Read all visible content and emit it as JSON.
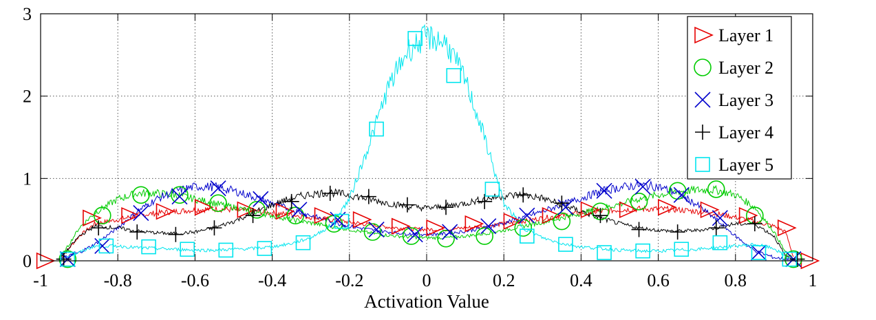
{
  "chart_data": {
    "type": "line",
    "title": "",
    "xlabel": "Activation Value",
    "ylabel": "",
    "xlim": [
      -1,
      1
    ],
    "ylim": [
      0,
      3
    ],
    "xticks": [
      -1,
      -0.8,
      -0.6,
      -0.4,
      -0.2,
      0,
      0.2,
      0.4,
      0.6,
      0.8,
      1
    ],
    "xtick_labels": [
      "-1",
      "-0.8",
      "-0.6",
      "-0.4",
      "-0.2",
      "0",
      "0.2",
      "0.4",
      "0.6",
      "0.8",
      "1"
    ],
    "yticks": [
      0,
      1,
      2,
      3
    ],
    "ytick_labels": [
      "0",
      "1",
      "2",
      "3"
    ],
    "grid": true,
    "legend_position": "top-right",
    "series": [
      {
        "name": "Layer 1",
        "color": "#e60000",
        "marker": "triangle-right",
        "x": [
          -0.95,
          -0.9,
          -0.86,
          -0.8,
          -0.75,
          -0.7,
          -0.65,
          -0.6,
          -0.55,
          -0.5,
          -0.45,
          -0.4,
          -0.35,
          -0.3,
          -0.25,
          -0.2,
          -0.15,
          -0.1,
          -0.05,
          0.0,
          0.05,
          0.1,
          0.15,
          0.2,
          0.25,
          0.3,
          0.35,
          0.4,
          0.45,
          0.5,
          0.55,
          0.6,
          0.65,
          0.7,
          0.75,
          0.8,
          0.85,
          0.9,
          0.93,
          0.95
        ],
        "y": [
          0.02,
          0.3,
          0.45,
          0.5,
          0.55,
          0.58,
          0.6,
          0.62,
          0.63,
          0.62,
          0.6,
          0.58,
          0.56,
          0.53,
          0.5,
          0.47,
          0.44,
          0.41,
          0.39,
          0.38,
          0.38,
          0.4,
          0.42,
          0.45,
          0.48,
          0.52,
          0.55,
          0.58,
          0.6,
          0.62,
          0.63,
          0.63,
          0.62,
          0.6,
          0.57,
          0.53,
          0.48,
          0.42,
          0.35,
          0.05
        ],
        "markers_x": [
          -0.99,
          -0.87,
          -0.77,
          -0.68,
          -0.58,
          -0.47,
          -0.37,
          -0.27,
          -0.17,
          -0.07,
          0.02,
          0.12,
          0.22,
          0.32,
          0.42,
          0.52,
          0.62,
          0.73,
          0.83,
          0.93,
          0.99
        ],
        "markers_y": [
          0.0,
          0.52,
          0.55,
          0.6,
          0.65,
          0.62,
          0.6,
          0.55,
          0.5,
          0.42,
          0.4,
          0.45,
          0.48,
          0.55,
          0.62,
          0.62,
          0.65,
          0.62,
          0.55,
          0.4,
          0.0
        ]
      },
      {
        "name": "Layer 2",
        "color": "#00cc00",
        "marker": "circle",
        "x": [
          -0.95,
          -0.9,
          -0.86,
          -0.8,
          -0.75,
          -0.7,
          -0.65,
          -0.6,
          -0.55,
          -0.5,
          -0.45,
          -0.4,
          -0.35,
          -0.3,
          -0.25,
          -0.2,
          -0.15,
          -0.1,
          -0.05,
          0.0,
          0.05,
          0.1,
          0.15,
          0.2,
          0.25,
          0.3,
          0.35,
          0.4,
          0.45,
          0.5,
          0.55,
          0.6,
          0.65,
          0.7,
          0.75,
          0.8,
          0.85,
          0.9,
          0.93,
          0.95
        ],
        "y": [
          0.02,
          0.4,
          0.58,
          0.75,
          0.82,
          0.82,
          0.8,
          0.75,
          0.7,
          0.65,
          0.6,
          0.55,
          0.5,
          0.46,
          0.42,
          0.38,
          0.34,
          0.31,
          0.29,
          0.28,
          0.28,
          0.3,
          0.33,
          0.37,
          0.42,
          0.47,
          0.52,
          0.58,
          0.63,
          0.69,
          0.75,
          0.8,
          0.84,
          0.86,
          0.86,
          0.8,
          0.65,
          0.35,
          0.1,
          0.02
        ],
        "markers_x": [
          -0.93,
          -0.84,
          -0.74,
          -0.64,
          -0.54,
          -0.44,
          -0.34,
          -0.24,
          -0.14,
          -0.04,
          0.05,
          0.15,
          0.25,
          0.35,
          0.45,
          0.55,
          0.65,
          0.75,
          0.85,
          0.95
        ],
        "markers_y": [
          0.02,
          0.55,
          0.8,
          0.8,
          0.7,
          0.62,
          0.55,
          0.45,
          0.35,
          0.3,
          0.27,
          0.3,
          0.4,
          0.48,
          0.6,
          0.72,
          0.85,
          0.87,
          0.55,
          0.02
        ]
      },
      {
        "name": "Layer 3",
        "color": "#0000cc",
        "marker": "x",
        "x": [
          -0.95,
          -0.9,
          -0.86,
          -0.8,
          -0.75,
          -0.7,
          -0.65,
          -0.6,
          -0.55,
          -0.5,
          -0.45,
          -0.4,
          -0.35,
          -0.3,
          -0.25,
          -0.2,
          -0.15,
          -0.1,
          -0.05,
          0.0,
          0.05,
          0.1,
          0.15,
          0.2,
          0.25,
          0.3,
          0.35,
          0.4,
          0.45,
          0.5,
          0.55,
          0.6,
          0.65,
          0.7,
          0.75,
          0.8,
          0.85,
          0.9,
          0.93,
          0.95
        ],
        "y": [
          0.02,
          0.1,
          0.2,
          0.4,
          0.6,
          0.75,
          0.85,
          0.9,
          0.9,
          0.85,
          0.78,
          0.7,
          0.62,
          0.55,
          0.48,
          0.42,
          0.38,
          0.35,
          0.33,
          0.32,
          0.33,
          0.36,
          0.4,
          0.46,
          0.53,
          0.6,
          0.68,
          0.76,
          0.84,
          0.89,
          0.92,
          0.9,
          0.82,
          0.68,
          0.5,
          0.3,
          0.12,
          0.04,
          0.02,
          0.01
        ],
        "markers_x": [
          -0.93,
          -0.84,
          -0.74,
          -0.64,
          -0.54,
          -0.43,
          -0.33,
          -0.23,
          -0.13,
          -0.03,
          0.06,
          0.16,
          0.26,
          0.36,
          0.46,
          0.56,
          0.66,
          0.76,
          0.86,
          0.95
        ],
        "markers_y": [
          0.02,
          0.18,
          0.58,
          0.78,
          0.88,
          0.75,
          0.62,
          0.5,
          0.38,
          0.32,
          0.35,
          0.42,
          0.55,
          0.65,
          0.85,
          0.9,
          0.8,
          0.52,
          0.1,
          0.02
        ]
      },
      {
        "name": "Layer 4",
        "color": "#000000",
        "marker": "plus",
        "x": [
          -0.95,
          -0.9,
          -0.86,
          -0.8,
          -0.75,
          -0.7,
          -0.65,
          -0.6,
          -0.55,
          -0.5,
          -0.45,
          -0.4,
          -0.35,
          -0.3,
          -0.25,
          -0.2,
          -0.15,
          -0.1,
          -0.05,
          0.0,
          0.05,
          0.1,
          0.15,
          0.2,
          0.25,
          0.3,
          0.35,
          0.4,
          0.45,
          0.5,
          0.55,
          0.6,
          0.65,
          0.7,
          0.75,
          0.8,
          0.85,
          0.9,
          0.93,
          0.95
        ],
        "y": [
          0.02,
          0.3,
          0.42,
          0.4,
          0.36,
          0.34,
          0.33,
          0.35,
          0.4,
          0.48,
          0.58,
          0.68,
          0.76,
          0.81,
          0.83,
          0.8,
          0.75,
          0.7,
          0.66,
          0.64,
          0.66,
          0.7,
          0.75,
          0.79,
          0.8,
          0.76,
          0.68,
          0.6,
          0.52,
          0.45,
          0.4,
          0.37,
          0.36,
          0.37,
          0.4,
          0.45,
          0.45,
          0.3,
          0.05,
          0.02
        ],
        "markers_x": [
          -0.94,
          -0.85,
          -0.75,
          -0.65,
          -0.55,
          -0.45,
          -0.35,
          -0.25,
          -0.15,
          -0.05,
          0.05,
          0.15,
          0.25,
          0.35,
          0.45,
          0.55,
          0.65,
          0.75,
          0.85,
          0.96
        ],
        "markers_y": [
          0.02,
          0.4,
          0.35,
          0.32,
          0.4,
          0.55,
          0.72,
          0.82,
          0.78,
          0.68,
          0.65,
          0.72,
          0.8,
          0.7,
          0.55,
          0.38,
          0.35,
          0.4,
          0.45,
          0.02
        ]
      },
      {
        "name": "Layer 5",
        "color": "#00e5ee",
        "marker": "square",
        "x": [
          -0.95,
          -0.9,
          -0.86,
          -0.8,
          -0.75,
          -0.7,
          -0.65,
          -0.6,
          -0.55,
          -0.5,
          -0.45,
          -0.4,
          -0.35,
          -0.3,
          -0.25,
          -0.2,
          -0.15,
          -0.1,
          -0.05,
          0.0,
          0.05,
          0.1,
          0.15,
          0.2,
          0.25,
          0.3,
          0.35,
          0.4,
          0.45,
          0.5,
          0.55,
          0.6,
          0.65,
          0.7,
          0.75,
          0.8,
          0.85,
          0.9,
          0.93,
          0.95
        ],
        "y": [
          0.02,
          0.1,
          0.18,
          0.18,
          0.16,
          0.15,
          0.14,
          0.13,
          0.13,
          0.14,
          0.15,
          0.17,
          0.21,
          0.28,
          0.42,
          0.75,
          1.4,
          2.1,
          2.55,
          2.72,
          2.65,
          2.2,
          1.5,
          0.7,
          0.4,
          0.28,
          0.21,
          0.17,
          0.15,
          0.13,
          0.12,
          0.12,
          0.13,
          0.14,
          0.16,
          0.18,
          0.2,
          0.15,
          0.05,
          0.02
        ],
        "markers_x": [
          -0.93,
          -0.83,
          -0.72,
          -0.62,
          -0.52,
          -0.42,
          -0.32,
          -0.22,
          -0.13,
          -0.03,
          0.07,
          0.17,
          0.26,
          0.36,
          0.46,
          0.56,
          0.66,
          0.76,
          0.86,
          0.94
        ],
        "markers_y": [
          0.02,
          0.18,
          0.17,
          0.14,
          0.13,
          0.15,
          0.22,
          0.48,
          1.6,
          2.7,
          2.25,
          0.87,
          0.3,
          0.2,
          0.1,
          0.12,
          0.14,
          0.22,
          0.1,
          0.02
        ]
      }
    ]
  }
}
